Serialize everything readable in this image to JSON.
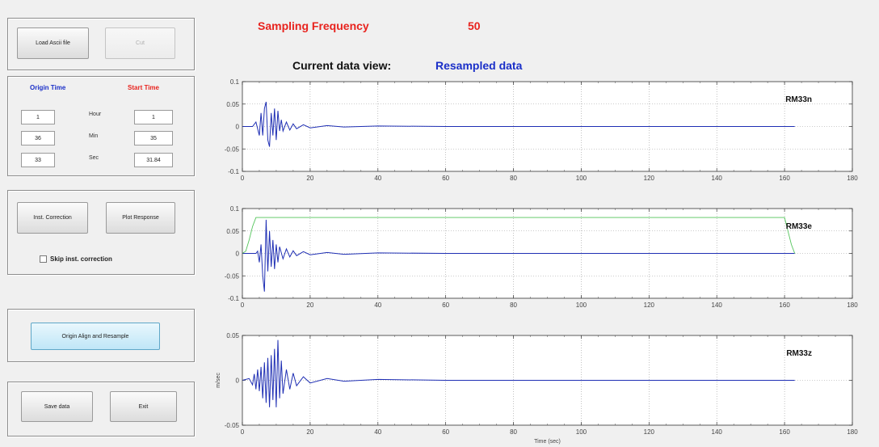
{
  "top": {
    "sampling_label": "Sampling Frequency",
    "sampling_value": "50",
    "view_label": "Current data view:",
    "view_value": "Resampled data"
  },
  "file_panel": {
    "load_button": "Load Ascii file",
    "cut_button": "Cut"
  },
  "time_panel": {
    "origin_header": "Origin Time",
    "start_header": "Start Time",
    "row_labels": [
      "Hour",
      "Min",
      "Sec"
    ],
    "origin_values": [
      "1",
      "36",
      "33"
    ],
    "start_values": [
      "1",
      "35",
      "31.84"
    ]
  },
  "correction_panel": {
    "inst_button": "Inst. Correction",
    "plot_button": "Plot Response",
    "skip_label": "Skip inst. correction"
  },
  "align_panel": {
    "align_button": "Origin Align and Resample"
  },
  "bottom_panel": {
    "save_button": "Save data",
    "exit_button": "Exit"
  },
  "colors": {
    "title_red": "#e8231e",
    "label_blue": "#1a2fc8",
    "trace_blue": "#1f2fb4",
    "window_green": "#52c45a"
  },
  "chart_data": [
    {
      "type": "line",
      "name_label": "RM33n",
      "xlim": [
        0,
        180
      ],
      "ylim": [
        -0.1,
        0.1
      ],
      "xticks": [
        "0",
        "20",
        "40",
        "60",
        "80",
        "100",
        "120",
        "140",
        "160",
        "180"
      ],
      "yticks": [
        "0.1",
        "0.05",
        "0",
        "-0.05",
        "-0.1"
      ],
      "ylabel": "",
      "xlabel": "",
      "grid": true,
      "series": [
        {
          "color": "#1f2fb4",
          "x": [
            0,
            3,
            4,
            5,
            5.5,
            6,
            6.5,
            7,
            7.5,
            8,
            8.5,
            9,
            9.5,
            10,
            10.5,
            11,
            11.5,
            12,
            13,
            14,
            15,
            16,
            18,
            20,
            25,
            30,
            40,
            60,
            80,
            100,
            120,
            140,
            160,
            163
          ],
          "y": [
            0,
            0,
            0.01,
            -0.02,
            0.03,
            -0.02,
            0.04,
            0.055,
            -0.03,
            -0.045,
            0.03,
            -0.02,
            0.04,
            -0.03,
            0.035,
            -0.01,
            0.015,
            -0.01,
            0.01,
            -0.008,
            0.006,
            -0.005,
            0.004,
            -0.003,
            0.002,
            -0.001,
            0.001,
            0,
            0,
            0,
            0,
            0,
            0,
            0
          ]
        }
      ]
    },
    {
      "type": "line",
      "name_label": "RM33e",
      "xlim": [
        0,
        180
      ],
      "ylim": [
        -0.1,
        0.1
      ],
      "xticks": [
        "0",
        "20",
        "40",
        "60",
        "80",
        "100",
        "120",
        "140",
        "160",
        "180"
      ],
      "yticks": [
        "0.1",
        "0.05",
        "0",
        "-0.05",
        "-0.1"
      ],
      "ylabel": "",
      "xlabel": "",
      "grid": true,
      "series": [
        {
          "color": "#1f2fb4",
          "x": [
            0,
            4,
            4.5,
            5,
            5.5,
            6,
            6.5,
            7,
            7.5,
            8,
            8.5,
            9,
            9.5,
            10,
            10.5,
            11,
            12,
            13,
            14,
            15,
            16,
            18,
            20,
            25,
            30,
            40,
            60,
            80,
            100,
            120,
            140,
            160,
            163
          ],
          "y": [
            0,
            0,
            0.005,
            -0.02,
            0.02,
            -0.05,
            -0.085,
            0.075,
            -0.04,
            0.05,
            -0.03,
            0.03,
            -0.035,
            0.02,
            -0.02,
            0.015,
            -0.012,
            0.01,
            -0.008,
            0.006,
            -0.005,
            0.004,
            -0.003,
            0.002,
            -0.002,
            0.001,
            0,
            0,
            0,
            0,
            0,
            0,
            0
          ]
        },
        {
          "color": "#52c45a",
          "x": [
            0,
            1,
            2,
            3,
            4,
            150,
            158,
            160,
            161,
            162,
            163
          ],
          "y": [
            0,
            0.005,
            0.03,
            0.06,
            0.08,
            0.08,
            0.08,
            0.08,
            0.05,
            0.02,
            0
          ]
        }
      ]
    },
    {
      "type": "line",
      "name_label": "RM33z",
      "xlim": [
        0,
        180
      ],
      "ylim": [
        -0.05,
        0.05
      ],
      "xticks": [
        "0",
        "20",
        "40",
        "60",
        "80",
        "100",
        "120",
        "140",
        "160",
        "180"
      ],
      "yticks": [
        "0.05",
        "0",
        "-0.05"
      ],
      "ylabel": "m/sec",
      "xlabel": "Time (sec)",
      "grid": true,
      "series": [
        {
          "color": "#1f2fb4",
          "x": [
            0,
            2,
            3,
            3.5,
            4,
            4.5,
            5,
            5.5,
            6,
            6.5,
            7,
            7.5,
            8,
            8.5,
            9,
            9.5,
            10,
            10.5,
            11,
            11.5,
            12,
            13,
            14,
            15,
            16,
            18,
            20,
            25,
            30,
            40,
            60,
            80,
            100,
            120,
            140,
            160,
            163
          ],
          "y": [
            0,
            0.002,
            -0.005,
            0.007,
            -0.01,
            0.012,
            -0.012,
            0.015,
            -0.02,
            0.02,
            -0.025,
            0.025,
            -0.03,
            0.028,
            -0.022,
            0.035,
            -0.03,
            0.045,
            -0.02,
            0.022,
            -0.015,
            0.012,
            -0.01,
            0.008,
            -0.006,
            0.004,
            -0.003,
            0.002,
            -0.001,
            0.001,
            0,
            0,
            0,
            0,
            0,
            0,
            0
          ]
        }
      ]
    }
  ]
}
